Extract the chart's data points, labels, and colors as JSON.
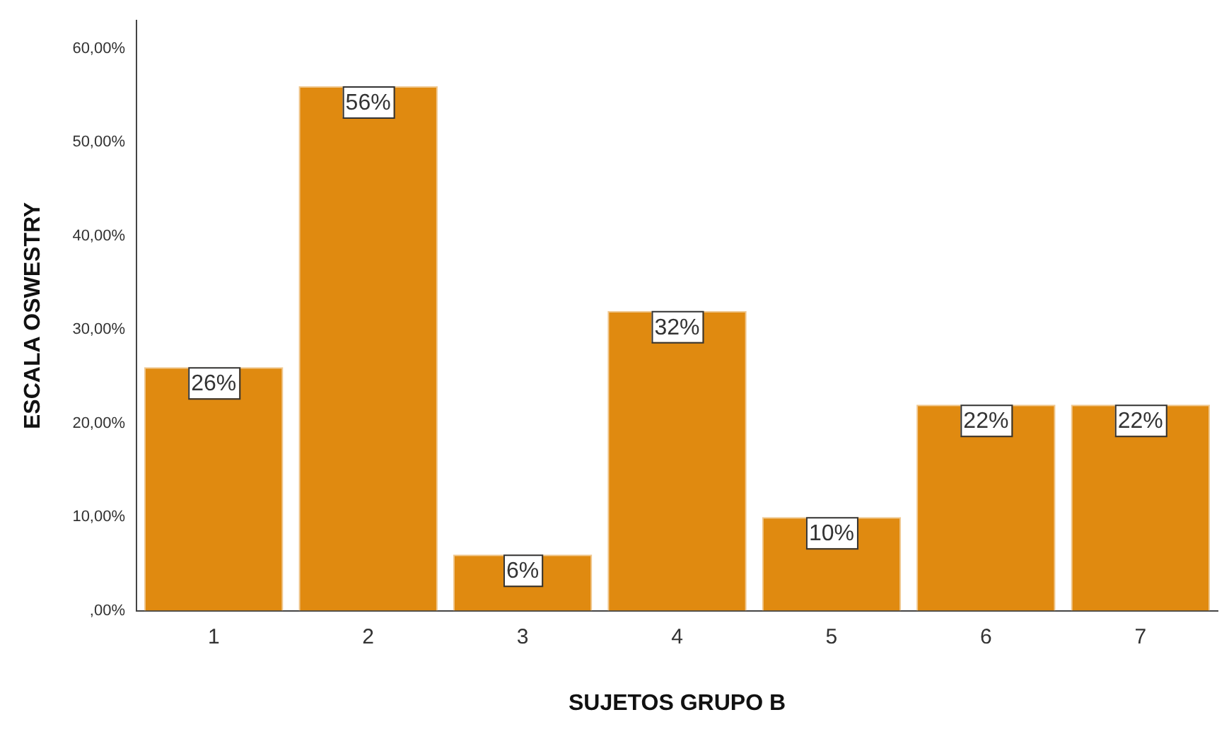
{
  "chart_data": {
    "type": "bar",
    "xlabel": "SUJETOS GRUPO B",
    "ylabel": "ESCALA OSWESTRY",
    "categories": [
      "1",
      "2",
      "3",
      "4",
      "5",
      "6",
      "7"
    ],
    "values": [
      26,
      56,
      6,
      32,
      10,
      22,
      22
    ],
    "value_labels": [
      "26%",
      "56%",
      "6%",
      "32%",
      "10%",
      "22%",
      "22%"
    ],
    "color": "#e08a10",
    "ylim": [
      0,
      63
    ],
    "yticks": [
      {
        "value": 0,
        "label": ",00%"
      },
      {
        "value": 10,
        "label": "10,00%"
      },
      {
        "value": 20,
        "label": "20,00%"
      },
      {
        "value": 30,
        "label": "30,00%"
      },
      {
        "value": 40,
        "label": "40,00%"
      },
      {
        "value": 50,
        "label": "50,00%"
      },
      {
        "value": 60,
        "label": "60,00%"
      }
    ],
    "grid": false,
    "legend": false
  }
}
